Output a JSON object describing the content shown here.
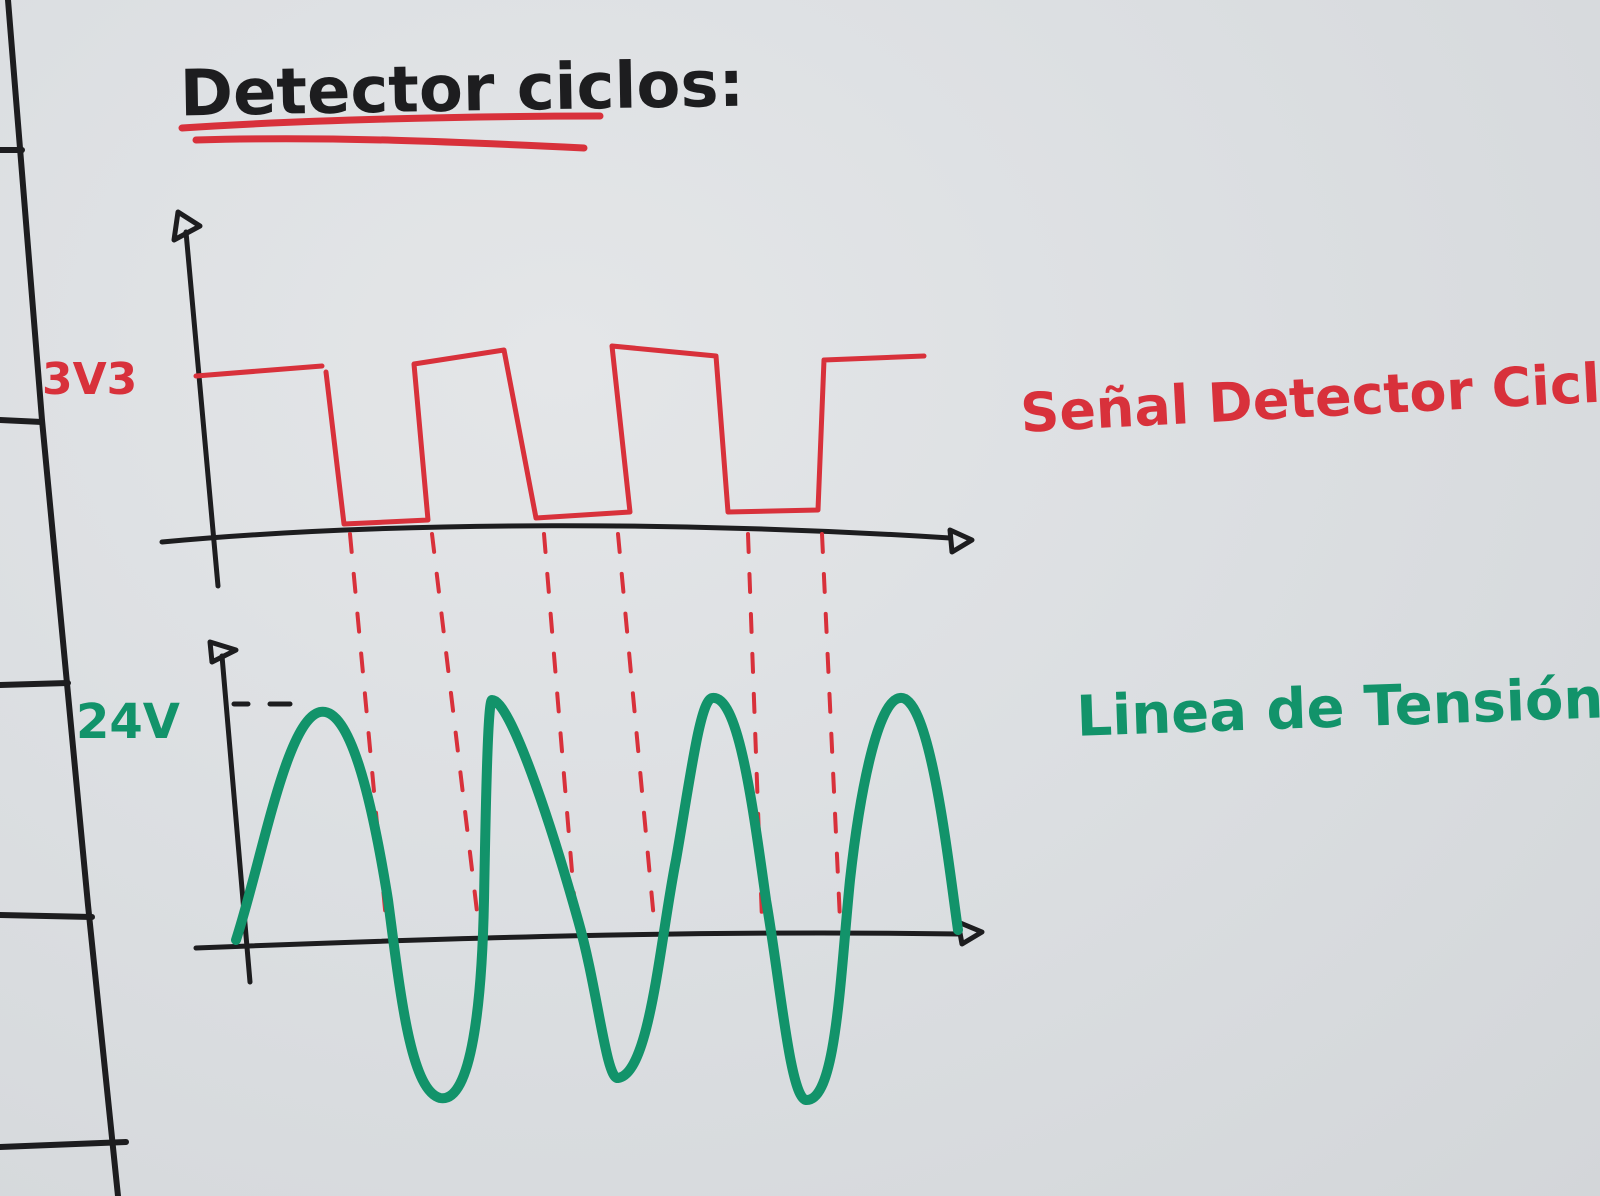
{
  "title": "Detector ciclos:",
  "top_graph": {
    "level_label": "3V3",
    "signal_label": "Señal Detector Ciclos"
  },
  "bottom_graph": {
    "level_label": "24V",
    "signal_label": "Linea de Tensión"
  },
  "colors": {
    "black": "#1d1d1f",
    "red": "#d8313b",
    "green": "#12936a"
  }
}
